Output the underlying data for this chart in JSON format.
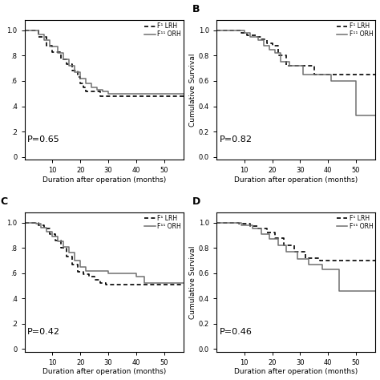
{
  "panels": [
    {
      "label": "",
      "p_value": "P=0.65",
      "has_ylabel": false,
      "xlim": [
        0,
        57
      ],
      "ylim": [
        -0.02,
        1.08
      ],
      "yticks": [
        0.0,
        0.2,
        0.4,
        0.6,
        0.8,
        1.0
      ],
      "xticks": [
        10,
        20,
        30,
        40,
        50
      ],
      "lih_x": [
        0,
        4,
        5,
        8,
        10,
        13,
        15,
        17,
        19,
        20,
        21,
        22,
        25,
        27,
        42,
        57
      ],
      "lih_y": [
        1.0,
        1.0,
        0.95,
        0.88,
        0.83,
        0.77,
        0.73,
        0.68,
        0.63,
        0.58,
        0.55,
        0.52,
        0.52,
        0.48,
        0.48,
        0.48
      ],
      "orh_x": [
        0,
        5,
        7,
        9,
        12,
        14,
        16,
        18,
        20,
        22,
        24,
        26,
        28,
        30,
        32,
        57
      ],
      "orh_y": [
        1.0,
        0.97,
        0.92,
        0.87,
        0.82,
        0.77,
        0.72,
        0.67,
        0.62,
        0.58,
        0.55,
        0.53,
        0.52,
        0.5,
        0.5,
        0.5
      ]
    },
    {
      "label": "B",
      "p_value": "P=0.82",
      "has_ylabel": true,
      "xlim": [
        0,
        57
      ],
      "ylim": [
        -0.02,
        1.08
      ],
      "yticks": [
        0.0,
        0.2,
        0.4,
        0.6,
        0.8,
        1.0
      ],
      "xticks": [
        10,
        20,
        30,
        40,
        50
      ],
      "lih_x": [
        0,
        7,
        9,
        11,
        14,
        16,
        18,
        20,
        22,
        25,
        30,
        35,
        40,
        45,
        57
      ],
      "lih_y": [
        1.0,
        1.0,
        0.98,
        0.96,
        0.95,
        0.93,
        0.9,
        0.88,
        0.8,
        0.72,
        0.72,
        0.65,
        0.65,
        0.65,
        0.65
      ],
      "orh_x": [
        0,
        8,
        10,
        12,
        15,
        17,
        19,
        21,
        23,
        26,
        31,
        36,
        41,
        46,
        49,
        50,
        57
      ],
      "orh_y": [
        1.0,
        1.0,
        0.98,
        0.95,
        0.92,
        0.88,
        0.85,
        0.82,
        0.75,
        0.72,
        0.65,
        0.65,
        0.6,
        0.6,
        0.6,
        0.33,
        0.33
      ]
    },
    {
      "label": "C",
      "p_value": "P=0.42",
      "has_ylabel": false,
      "xlim": [
        0,
        57
      ],
      "ylim": [
        -0.02,
        1.08
      ],
      "yticks": [
        0.0,
        0.2,
        0.4,
        0.6,
        0.8,
        1.0
      ],
      "xticks": [
        10,
        20,
        30,
        40,
        50
      ],
      "lih_x": [
        0,
        3,
        5,
        7,
        9,
        11,
        13,
        15,
        17,
        19,
        21,
        23,
        25,
        27,
        29,
        57
      ],
      "lih_y": [
        1.0,
        1.0,
        0.98,
        0.95,
        0.91,
        0.86,
        0.8,
        0.73,
        0.67,
        0.61,
        0.59,
        0.57,
        0.55,
        0.52,
        0.51,
        0.51
      ],
      "orh_x": [
        0,
        4,
        6,
        8,
        10,
        12,
        14,
        16,
        18,
        20,
        22,
        30,
        40,
        43,
        57
      ],
      "orh_y": [
        1.0,
        0.99,
        0.96,
        0.93,
        0.89,
        0.85,
        0.81,
        0.76,
        0.7,
        0.65,
        0.62,
        0.6,
        0.57,
        0.52,
        0.52
      ]
    },
    {
      "label": "D",
      "p_value": "P=0.46",
      "has_ylabel": true,
      "xlim": [
        0,
        57
      ],
      "ylim": [
        -0.02,
        1.08
      ],
      "yticks": [
        0.0,
        0.2,
        0.4,
        0.6,
        0.8,
        1.0
      ],
      "xticks": [
        10,
        20,
        30,
        40,
        50
      ],
      "lih_x": [
        0,
        5,
        8,
        12,
        15,
        18,
        21,
        24,
        28,
        32,
        37,
        42,
        57
      ],
      "lih_y": [
        1.0,
        1.0,
        0.99,
        0.97,
        0.95,
        0.92,
        0.88,
        0.82,
        0.77,
        0.72,
        0.7,
        0.7,
        0.7
      ],
      "orh_x": [
        0,
        6,
        9,
        13,
        16,
        19,
        22,
        25,
        29,
        33,
        38,
        43,
        44,
        57
      ],
      "orh_y": [
        1.0,
        1.0,
        0.98,
        0.95,
        0.91,
        0.87,
        0.82,
        0.77,
        0.71,
        0.67,
        0.63,
        0.63,
        0.46,
        0.46
      ]
    }
  ],
  "xlabel": "Duration after operation (months)",
  "ylabel": "Cumulative Survival",
  "legend_lih": "F¹ LRH",
  "legend_orh": "F¹¹ ORH",
  "font_size": 6.5,
  "tick_fontsize": 6,
  "p_fontsize": 8
}
